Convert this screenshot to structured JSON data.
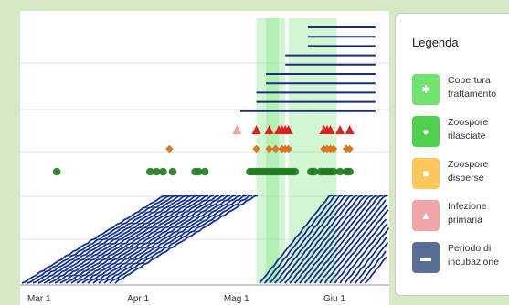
{
  "chart_data": {
    "type": "timeline",
    "x_ticks": [
      "Mar 1",
      "Apr 1",
      "Mag 1",
      "Giu 1"
    ],
    "legend": {
      "title": "Legenda",
      "items": [
        {
          "label": "Copertura trattamento",
          "color": "#6ee36e",
          "icon": "bug-icon"
        },
        {
          "label": "Zoospore rilasciate",
          "color": "#4fd14f",
          "icon": "circle-icon"
        },
        {
          "label": "Zoospore disperse",
          "color": "#ffc75a",
          "icon": "square-icon"
        },
        {
          "label": "Infezione primaria",
          "color": "#f0a6a6",
          "icon": "warning-triangle-icon"
        },
        {
          "label": "Periodo di incubazione",
          "color": "#5a6f98",
          "icon": "minus-icon"
        }
      ]
    },
    "treatment_coverage": [
      {
        "start": "2024-05-10",
        "end": "2024-05-19"
      },
      {
        "start": "2024-05-13",
        "end": "2024-05-17"
      },
      {
        "start": "2024-05-20",
        "end": "2024-05-26"
      },
      {
        "start": "2024-05-26",
        "end": "2024-06-04"
      }
    ],
    "zoospore_released": [
      "2024-03-09",
      "2024-04-07",
      "2024-04-09",
      "2024-04-11",
      "2024-04-14",
      "2024-04-21",
      "2024-04-22",
      "2024-04-24",
      "2024-05-08",
      "2024-05-09",
      "2024-05-10",
      "2024-05-11",
      "2024-05-12",
      "2024-05-13",
      "2024-05-14",
      "2024-05-15",
      "2024-05-16",
      "2024-05-17",
      "2024-05-18",
      "2024-05-19",
      "2024-05-20",
      "2024-05-21",
      "2024-05-22",
      "2024-05-27",
      "2024-05-28",
      "2024-05-30",
      "2024-05-31",
      "2024-06-01",
      "2024-06-02",
      "2024-06-03",
      "2024-06-05",
      "2024-06-07",
      "2024-06-08"
    ],
    "zoospore_dispersed": [
      "2024-04-13",
      "2024-05-10",
      "2024-05-14",
      "2024-05-16",
      "2024-05-18",
      "2024-05-19",
      "2024-05-20",
      "2024-05-31",
      "2024-06-01",
      "2024-06-02",
      "2024-06-03",
      "2024-06-07",
      "2024-06-08"
    ],
    "primary_infection_light": [
      "2024-05-04",
      "2024-05-19"
    ],
    "primary_infection": [
      "2024-05-10",
      "2024-05-14",
      "2024-05-17",
      "2024-05-18",
      "2024-05-19",
      "2024-05-20",
      "2024-05-31",
      "2024-06-01",
      "2024-06-02",
      "2024-06-05",
      "2024-06-08"
    ],
    "incubation_periods": [
      {
        "start": "2024-05-26",
        "end": "2024-06-16"
      },
      {
        "start": "2024-05-26",
        "end": "2024-06-16"
      },
      {
        "start": "2024-05-26",
        "end": "2024-06-16"
      },
      {
        "start": "2024-05-19",
        "end": "2024-06-16"
      },
      {
        "start": "2024-05-19",
        "end": "2024-06-16"
      },
      {
        "start": "2024-05-13",
        "end": "2024-06-16"
      },
      {
        "start": "2024-05-13",
        "end": "2024-06-16"
      },
      {
        "start": "2024-05-10",
        "end": "2024-06-16"
      },
      {
        "start": "2024-05-10",
        "end": "2024-06-16"
      },
      {
        "start": "2024-05-05",
        "end": "2024-06-16"
      }
    ],
    "cumulative_series_count": 40,
    "grid": true
  }
}
